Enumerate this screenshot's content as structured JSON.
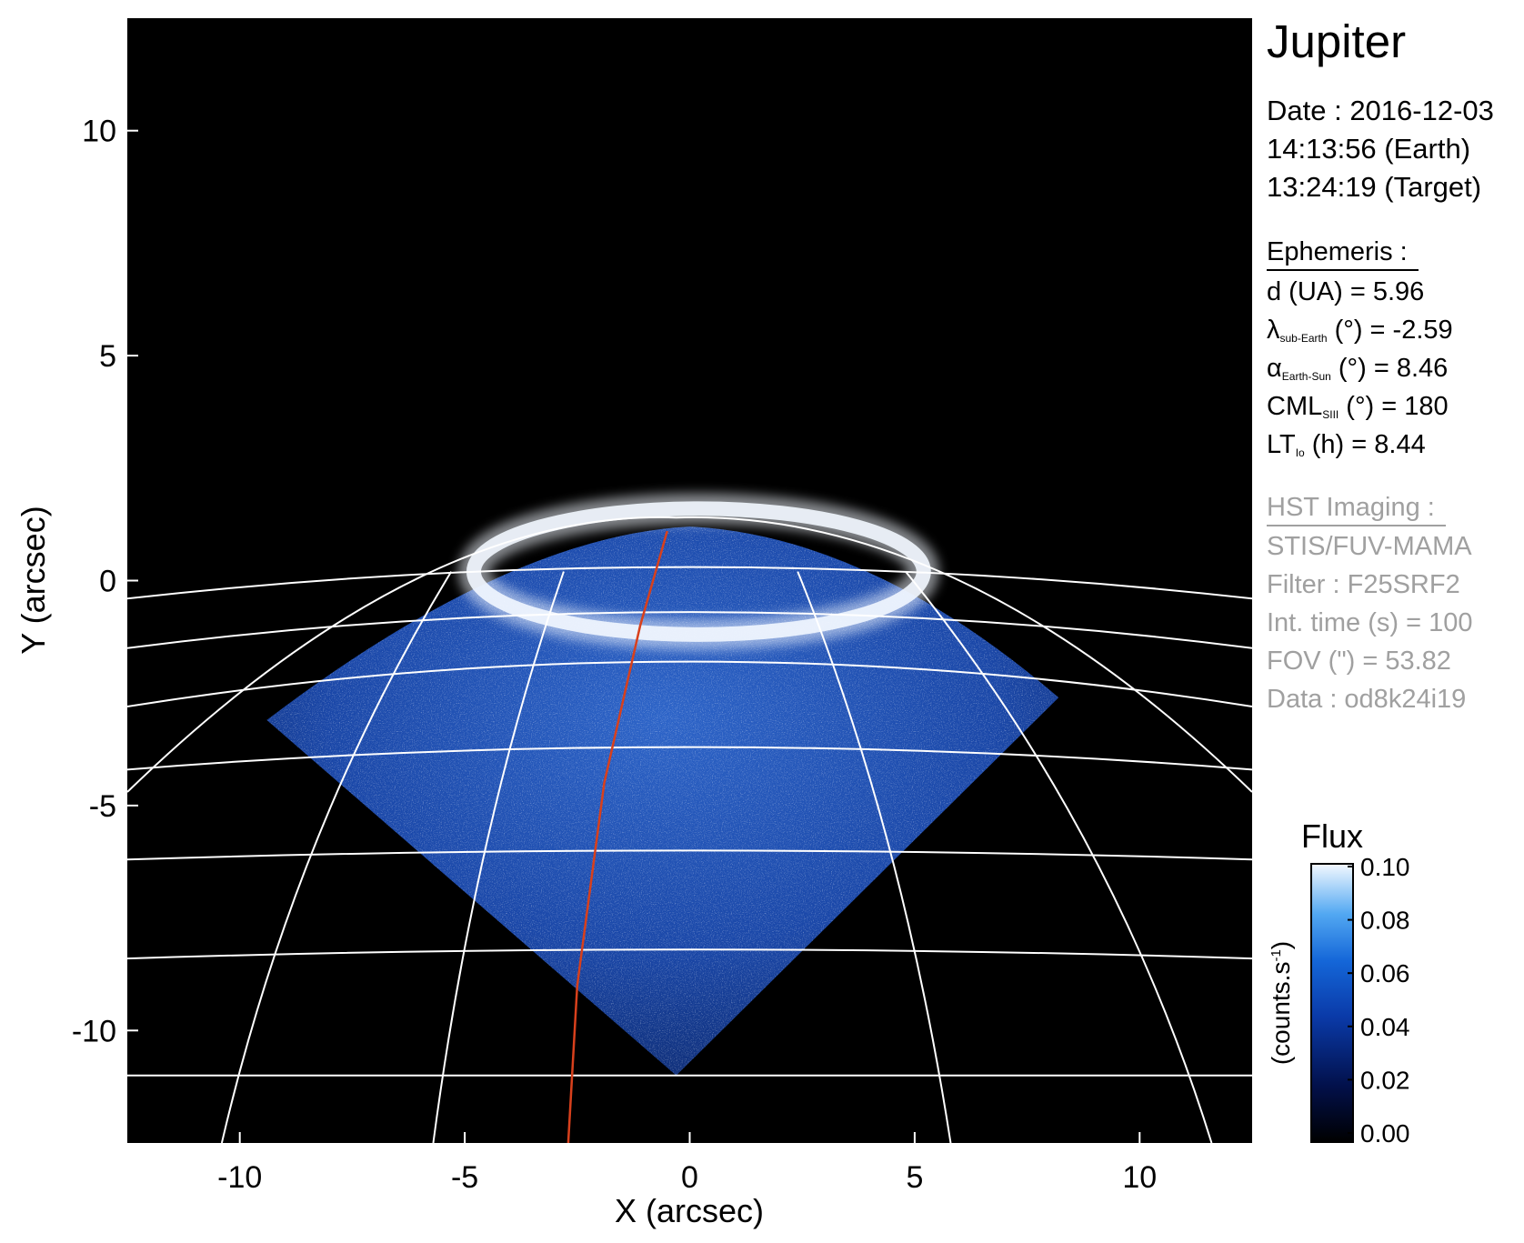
{
  "colors": {
    "background": "#000000",
    "grid": "#ffffff",
    "meridian": "#d8401c",
    "disk": "#1e4fb8",
    "aurora": "#f2f7ff",
    "muted_text": "#a0a0a0"
  },
  "chart_data": {
    "type": "heatmap",
    "title": "",
    "xlabel": "X (arcsec)",
    "ylabel": "Y (arcsec)",
    "xlim": [
      -12.5,
      12.5
    ],
    "ylim": [
      -12.5,
      12.5
    ],
    "x_ticks": [
      -10,
      -5,
      0,
      5,
      10
    ],
    "y_ticks": [
      10,
      5,
      0,
      -5,
      -10
    ],
    "x_tick_labels": [
      "-10",
      "-5",
      "0",
      "5",
      "10"
    ],
    "y_tick_labels": [
      "10",
      "5",
      "0",
      "-5",
      "-10"
    ],
    "planet_disk": {
      "center": [
        0,
        -11.6
      ],
      "radius_x": 19.3,
      "radius_y": 12.5,
      "fov_top_y": 1.2,
      "fov_bottom_y": -11.0,
      "fov_left_x": -9.4,
      "fov_right_x": 8.2
    },
    "grid_parallels": [
      {
        "y_center": 0.3,
        "y_edge": -0.4
      },
      {
        "y_center": -0.7,
        "y_edge": -1.5
      },
      {
        "y_center": -1.8,
        "y_edge": -2.8
      },
      {
        "y_center": -3.7,
        "y_edge": -4.2
      },
      {
        "y_center": -6.0,
        "y_edge": -6.2
      },
      {
        "y_center": -8.2,
        "y_edge": -8.4
      },
      {
        "y_center": -11.0,
        "y_edge": -11.0
      }
    ],
    "grid_meridians": [
      {
        "x_top": -5.3,
        "x_bottom": -10.4
      },
      {
        "x_top": -2.8,
        "x_bottom": -5.7
      },
      {
        "x_top": 2.4,
        "x_bottom": 5.8
      },
      {
        "x_top": 4.8,
        "x_bottom": 11.6
      }
    ],
    "central_meridian": {
      "x": [
        -0.5,
        -1.1,
        -1.9,
        -2.5,
        -2.7
      ],
      "y": [
        1.1,
        -1.0,
        -4.5,
        -9.0,
        -12.5
      ]
    },
    "aurora_ring": {
      "center": [
        0.2,
        0.2
      ],
      "radius_x": 5.0,
      "radius_y": 1.4
    },
    "colorbar": {
      "label": "Flux",
      "unit": "(counts.s",
      "unit_sup": "-1",
      "unit_close": ")",
      "ticks": [
        {
          "value": 0.1,
          "label": "0.10"
        },
        {
          "value": 0.08,
          "label": "0.08"
        },
        {
          "value": 0.06,
          "label": "0.06"
        },
        {
          "value": 0.04,
          "label": "0.04"
        },
        {
          "value": 0.02,
          "label": "0.02"
        },
        {
          "value": 0.0,
          "label": "0.00"
        }
      ],
      "range": [
        0.0,
        0.1
      ]
    }
  },
  "info": {
    "target": "Jupiter",
    "date": "Date : 2016-12-03",
    "time_earth": "14:13:56 (Earth)",
    "time_target": "13:24:19 (Target)",
    "ephemeris_title": "Ephemeris :",
    "distance": "d (UA)    = 5.96",
    "lambda_symbol": "λ",
    "lambda_sub": "sub-Earth",
    "lambda_rest": " (°) = -2.59",
    "alpha_symbol": "α",
    "alpha_sub": "Earth-Sun",
    "alpha_rest": " (°) = 8.46",
    "cml_symbol": "CML",
    "cml_sub": "SIII",
    "cml_rest": " (°) = 180",
    "lt_symbol": "LT",
    "lt_sub": "Io",
    "lt_rest": " (h) = 8.44",
    "hst_title": "HST Imaging :",
    "instrument": "STIS/FUV-MAMA",
    "filter": "Filter : F25SRF2",
    "int_time": "Int. time (s) = 100",
    "fov": "FOV (\") = 53.82",
    "data_id": "Data : od8k24i19"
  }
}
